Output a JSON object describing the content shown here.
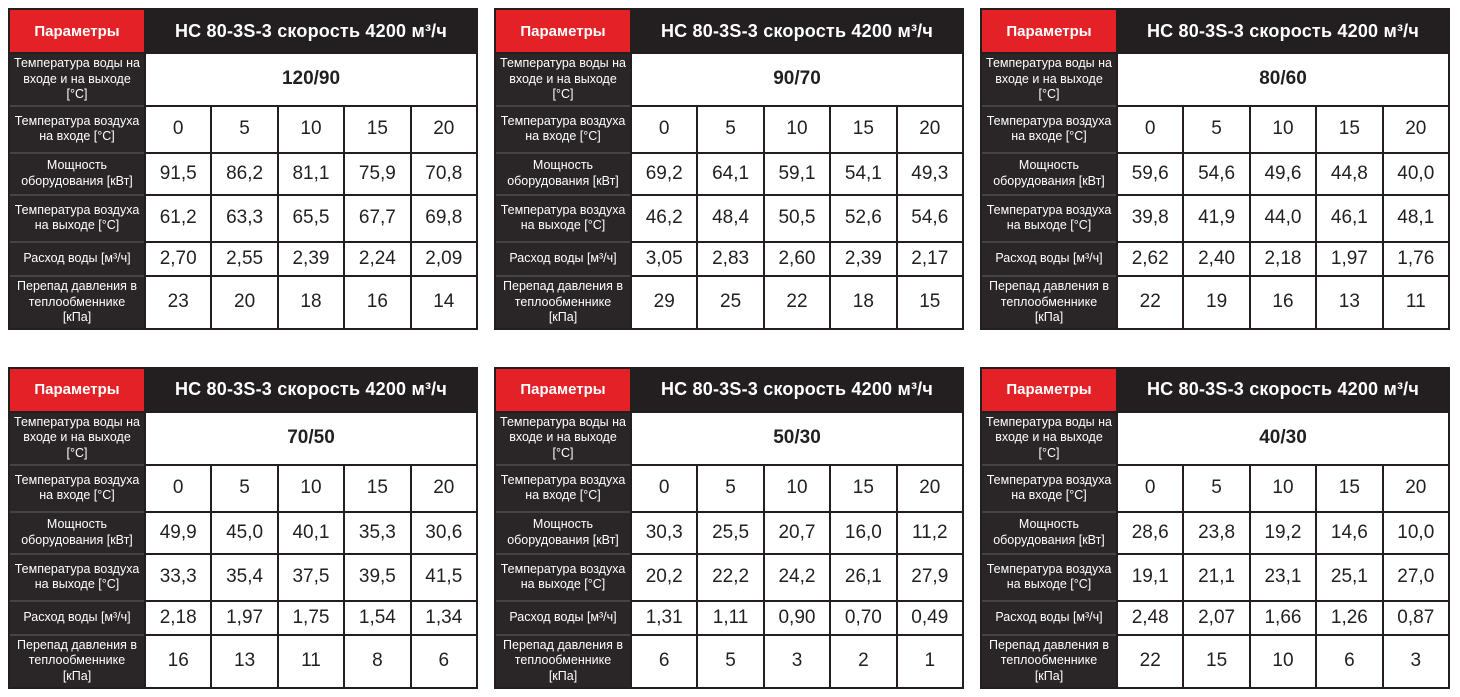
{
  "colors": {
    "accent_red": "#e42127",
    "dark": "#231f20"
  },
  "labels": {
    "params": "Параметры",
    "water_temp": "Температура воды на входе и на выходе [°С]",
    "air_in": "Температура воздуха на входе [°С]",
    "power": "Мощность оборудования [кВт]",
    "air_out": "Температура воздуха на выходе [°С]",
    "flow": "Расход воды [м³/ч]",
    "pressure": "Перепад давления в теплообменнике [кПа]"
  },
  "tables": [
    {
      "title": "НС 80-3S-3 скорость 4200 м³/ч",
      "water_temp": "120/90",
      "air_in": [
        "0",
        "5",
        "10",
        "15",
        "20"
      ],
      "power": [
        "91,5",
        "86,2",
        "81,1",
        "75,9",
        "70,8"
      ],
      "air_out": [
        "61,2",
        "63,3",
        "65,5",
        "67,7",
        "69,8"
      ],
      "flow": [
        "2,70",
        "2,55",
        "2,39",
        "2,24",
        "2,09"
      ],
      "pressure": [
        "23",
        "20",
        "18",
        "16",
        "14"
      ]
    },
    {
      "title": "НС 80-3S-3 скорость 4200 м³/ч",
      "water_temp": "90/70",
      "air_in": [
        "0",
        "5",
        "10",
        "15",
        "20"
      ],
      "power": [
        "69,2",
        "64,1",
        "59,1",
        "54,1",
        "49,3"
      ],
      "air_out": [
        "46,2",
        "48,4",
        "50,5",
        "52,6",
        "54,6"
      ],
      "flow": [
        "3,05",
        "2,83",
        "2,60",
        "2,39",
        "2,17"
      ],
      "pressure": [
        "29",
        "25",
        "22",
        "18",
        "15"
      ]
    },
    {
      "title": "НС 80-3S-3 скорость 4200 м³/ч",
      "water_temp": "80/60",
      "air_in": [
        "0",
        "5",
        "10",
        "15",
        "20"
      ],
      "power": [
        "59,6",
        "54,6",
        "49,6",
        "44,8",
        "40,0"
      ],
      "air_out": [
        "39,8",
        "41,9",
        "44,0",
        "46,1",
        "48,1"
      ],
      "flow": [
        "2,62",
        "2,40",
        "2,18",
        "1,97",
        "1,76"
      ],
      "pressure": [
        "22",
        "19",
        "16",
        "13",
        "11"
      ]
    },
    {
      "title": "НС 80-3S-3 скорость 4200 м³/ч",
      "water_temp": "70/50",
      "air_in": [
        "0",
        "5",
        "10",
        "15",
        "20"
      ],
      "power": [
        "49,9",
        "45,0",
        "40,1",
        "35,3",
        "30,6"
      ],
      "air_out": [
        "33,3",
        "35,4",
        "37,5",
        "39,5",
        "41,5"
      ],
      "flow": [
        "2,18",
        "1,97",
        "1,75",
        "1,54",
        "1,34"
      ],
      "pressure": [
        "16",
        "13",
        "11",
        "8",
        "6"
      ]
    },
    {
      "title": "НС 80-3S-3 скорость 4200 м³/ч",
      "water_temp": "50/30",
      "air_in": [
        "0",
        "5",
        "10",
        "15",
        "20"
      ],
      "power": [
        "30,3",
        "25,5",
        "20,7",
        "16,0",
        "11,2"
      ],
      "air_out": [
        "20,2",
        "22,2",
        "24,2",
        "26,1",
        "27,9"
      ],
      "flow": [
        "1,31",
        "1,11",
        "0,90",
        "0,70",
        "0,49"
      ],
      "pressure": [
        "6",
        "5",
        "3",
        "2",
        "1"
      ]
    },
    {
      "title": "НС 80-3S-3 скорость 4200 м³/ч",
      "water_temp": "40/30",
      "air_in": [
        "0",
        "5",
        "10",
        "15",
        "20"
      ],
      "power": [
        "28,6",
        "23,8",
        "19,2",
        "14,6",
        "10,0"
      ],
      "air_out": [
        "19,1",
        "21,1",
        "23,1",
        "25,1",
        "27,0"
      ],
      "flow": [
        "2,48",
        "2,07",
        "1,66",
        "1,26",
        "0,87"
      ],
      "pressure": [
        "22",
        "15",
        "10",
        "6",
        "3"
      ]
    }
  ]
}
